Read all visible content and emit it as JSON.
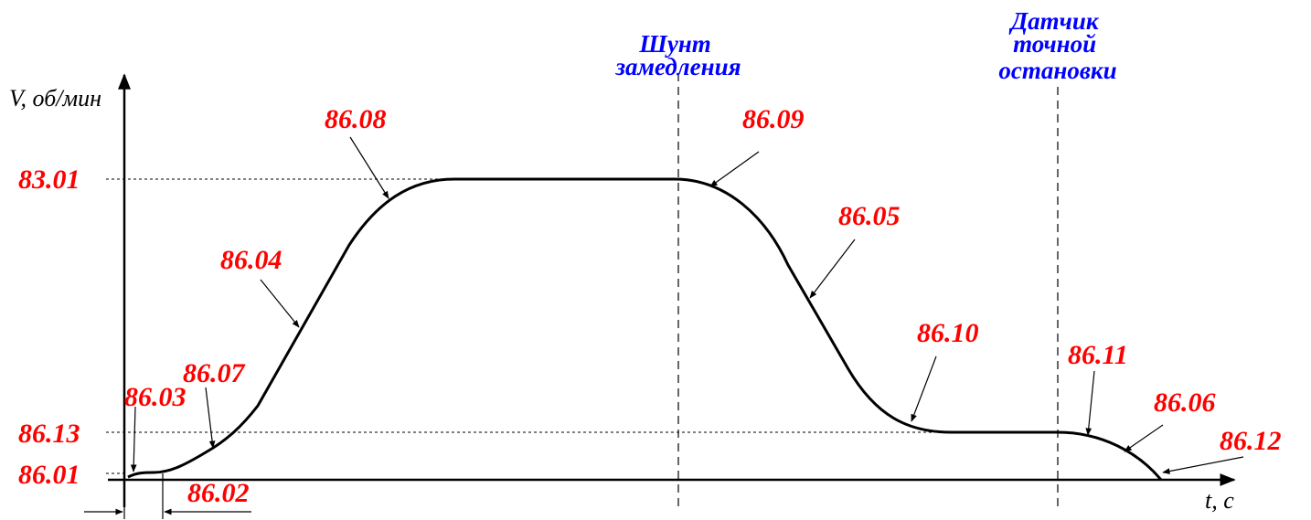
{
  "axes": {
    "y_label": "V, об/мин",
    "x_label": "t, с"
  },
  "markers": {
    "shunt": [
      "Шунт",
      "замедления"
    ],
    "sensor": [
      "Датчик",
      "точной",
      "остановки"
    ]
  },
  "levels": {
    "top": "83.01",
    "creep": "86.13",
    "start": "86.01"
  },
  "params": {
    "p8603": "86.03",
    "p8607": "86.07",
    "p8604": "86.04",
    "p8608": "86.08",
    "p8609": "86.09",
    "p8605": "86.05",
    "p8610": "86.10",
    "p8611": "86.11",
    "p8606": "86.06",
    "p8612": "86.12",
    "p8602": "86.02"
  },
  "colors": {
    "parameter": "#ff0000",
    "marker": "#0000ff",
    "line": "#000000"
  }
}
